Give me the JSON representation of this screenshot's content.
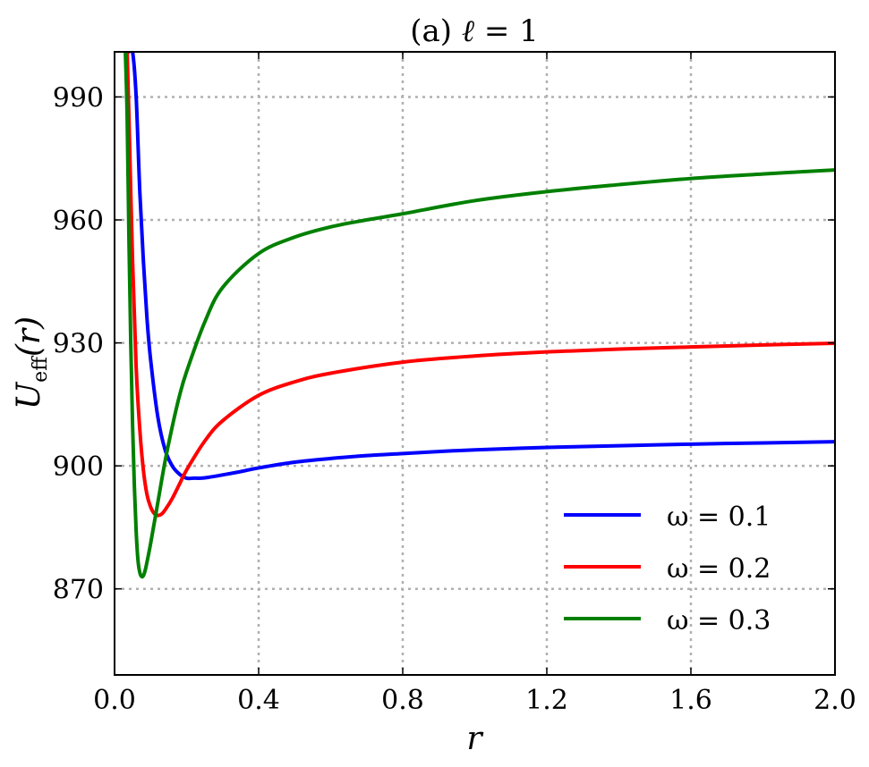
{
  "chart_data": {
    "type": "line",
    "title_prefix": "(a) ",
    "title_var": "ℓ",
    "title_suffix": " = 1",
    "xlabel": "r",
    "ylabel_main": "U",
    "ylabel_sub": "eff",
    "ylabel_arg": "(r)",
    "xlim": [
      0.0,
      2.0
    ],
    "ylim": [
      849,
      1001
    ],
    "xticks": [
      0.0,
      0.4,
      0.8,
      1.2,
      1.6,
      2.0
    ],
    "xtick_labels": [
      "0.0",
      "0.4",
      "0.8",
      "1.2",
      "1.6",
      "2.0"
    ],
    "yticks": [
      870,
      900,
      930,
      960,
      990
    ],
    "ytick_labels": [
      "870",
      "900",
      "930",
      "960",
      "990"
    ],
    "grid": true,
    "legend_position": "lower-right",
    "series": [
      {
        "name": "ω = 0.1",
        "color": "#0000ff",
        "x": [
          0.04,
          0.05,
          0.06,
          0.07,
          0.08,
          0.09,
          0.1,
          0.12,
          0.14,
          0.16,
          0.18,
          0.2,
          0.22,
          0.24,
          0.26,
          0.3,
          0.35,
          0.4,
          0.5,
          0.6,
          0.7,
          0.8,
          0.9,
          1.0,
          1.2,
          1.4,
          1.6,
          1.8,
          2.0
        ],
        "y": [
          1001,
          1001,
          990,
          967,
          950,
          936,
          926,
          912,
          904,
          900,
          898,
          897,
          897,
          897,
          897.2,
          897.8,
          898.6,
          899.5,
          900.9,
          901.8,
          902.5,
          903.0,
          903.5,
          903.9,
          904.5,
          904.9,
          905.3,
          905.6,
          905.9
        ]
      },
      {
        "name": "ω = 0.2",
        "color": "#ff0000",
        "x": [
          0.035,
          0.04,
          0.05,
          0.06,
          0.07,
          0.08,
          0.09,
          0.1,
          0.11,
          0.12,
          0.13,
          0.14,
          0.16,
          0.18,
          0.2,
          0.25,
          0.3,
          0.4,
          0.5,
          0.6,
          0.8,
          1.0,
          1.2,
          1.4,
          1.6,
          1.8,
          2.0
        ],
        "y": [
          1001,
          985,
          950,
          924,
          909,
          899,
          893,
          890,
          888.4,
          887.9,
          888.2,
          889.2,
          892,
          895.5,
          899,
          906,
          911,
          917.2,
          920.5,
          922.6,
          925.3,
          926.8,
          927.8,
          928.5,
          929.0,
          929.5,
          929.9
        ]
      },
      {
        "name": "ω = 0.3",
        "color": "#008000",
        "x": [
          0.03,
          0.035,
          0.04,
          0.045,
          0.05,
          0.055,
          0.06,
          0.065,
          0.07,
          0.075,
          0.08,
          0.085,
          0.09,
          0.1,
          0.12,
          0.14,
          0.16,
          0.18,
          0.2,
          0.25,
          0.3,
          0.4,
          0.5,
          0.6,
          0.7,
          0.8,
          1.0,
          1.2,
          1.4,
          1.6,
          1.8,
          2.0
        ],
        "y": [
          1001,
          985,
          955,
          930,
          910,
          895,
          884,
          877,
          874,
          873,
          873.2,
          874.5,
          876.5,
          881,
          891,
          901,
          909.5,
          917,
          923,
          935,
          943.5,
          951.8,
          955.8,
          958.3,
          960.0,
          961.5,
          964.7,
          966.9,
          968.6,
          970.1,
          971.2,
          972.2
        ]
      }
    ]
  }
}
